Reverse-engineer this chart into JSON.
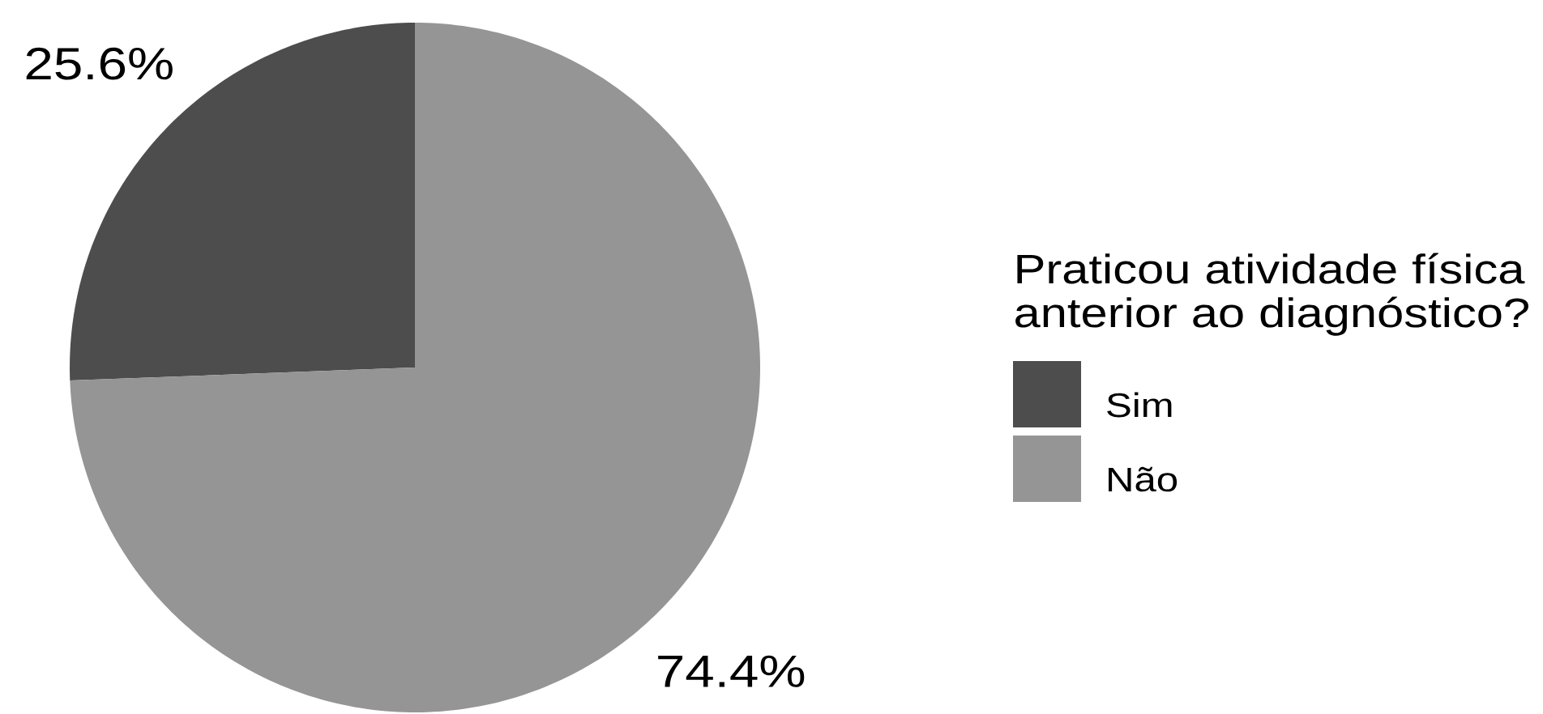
{
  "chart_data": {
    "type": "pie",
    "categories": [
      "Sim",
      "Não"
    ],
    "values": [
      25.6,
      74.4
    ],
    "colors": [
      "#4d4d4d",
      "#959595"
    ],
    "value_labels": [
      "25.6%",
      "74.4%"
    ],
    "legend_title": "Praticou atividade física anterior ao diagnóstico?",
    "legend": "right"
  }
}
